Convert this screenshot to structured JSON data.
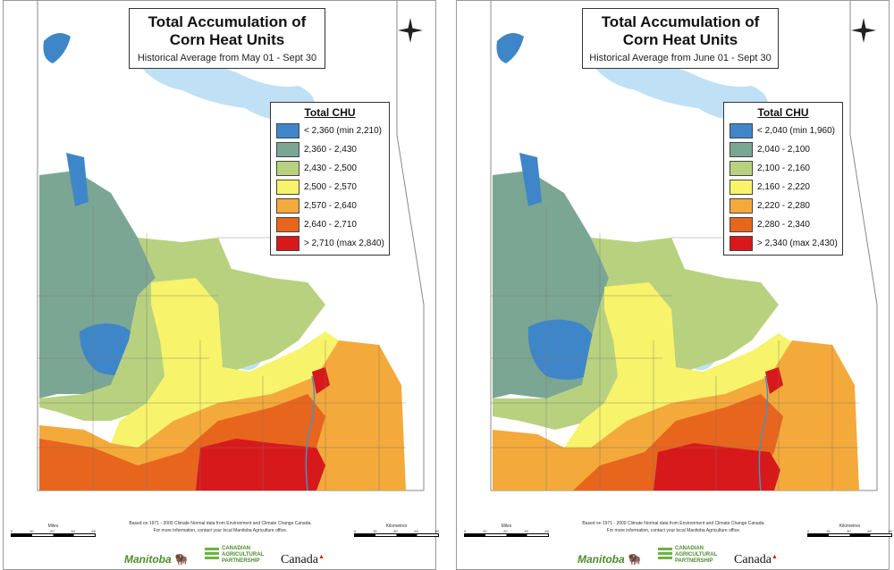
{
  "panels": [
    {
      "title_line1": "Total Accumulation of",
      "title_line2": "Corn Heat Units",
      "subtitle": "Historical Average from May 01 - Sept 30",
      "legend_title": "Total CHU",
      "legend": [
        {
          "label": "< 2,360 (min 2,210)",
          "color": "#3f86c8"
        },
        {
          "label": "2,360 - 2,430",
          "color": "#7ba693"
        },
        {
          "label": "2,430 - 2,500",
          "color": "#b8d17f"
        },
        {
          "label": "2,500 - 2,570",
          "color": "#f7f36a"
        },
        {
          "label": "2,570 - 2,640",
          "color": "#f4a93b"
        },
        {
          "label": "2,640 - 2,710",
          "color": "#e8651d"
        },
        {
          "label": "> 2,710 (max 2,840)",
          "color": "#d7191c"
        }
      ]
    },
    {
      "title_line1": "Total Accumulation of",
      "title_line2": "Corn Heat Units",
      "subtitle": "Historical Average from June 01 - Sept 30",
      "legend_title": "Total CHU",
      "legend": [
        {
          "label": "< 2,040 (min 1,960)",
          "color": "#3f86c8"
        },
        {
          "label": "2,040 - 2,100",
          "color": "#7ba693"
        },
        {
          "label": "2,100 - 2,160",
          "color": "#b8d17f"
        },
        {
          "label": "2,160 - 2,220",
          "color": "#f7f36a"
        },
        {
          "label": "2,220 - 2,280",
          "color": "#f4a93b"
        },
        {
          "label": "2,280 - 2,340",
          "color": "#e8651d"
        },
        {
          "label": "> 2,340 (max 2,430)",
          "color": "#d7191c"
        }
      ]
    }
  ],
  "footer": {
    "note1": "Based on 1971 - 2000 Climate Normal data from Environment and Climate Change Canada.",
    "note2": "For more information, contact your local Manitoba Agriculture office.",
    "scale_left_unit": "Miles",
    "scale_left_ticks": [
      "0",
      "10",
      "20",
      "40",
      "60"
    ],
    "scale_right_unit": "Kilometres",
    "scale_right_ticks": [
      "0",
      "15",
      "30",
      "60",
      "90"
    ]
  },
  "logos": {
    "manitoba": "Manitoba",
    "cap_line1": "CANADIAN",
    "cap_line2": "AGRICULTURAL",
    "cap_line3": "PARTNERSHIP",
    "canada": "Canada"
  },
  "map_colors": {
    "water": "#bfe0f5",
    "land": "#ffffff",
    "boundary": "#888888"
  }
}
